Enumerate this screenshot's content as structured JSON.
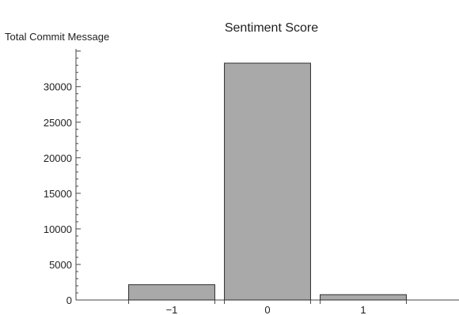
{
  "chart_data": {
    "type": "bar",
    "title": "Sentiment Score",
    "ylabel": "Total Commit Message",
    "xlabel": "",
    "categories": [
      "-1",
      "0",
      "1"
    ],
    "category_labels": [
      "−1",
      "0",
      "1"
    ],
    "values": [
      2150,
      33300,
      750
    ],
    "ylim": [
      0,
      35000
    ],
    "xlim": [
      -2,
      2
    ],
    "yticks": [
      0,
      5000,
      10000,
      15000,
      20000,
      25000,
      30000
    ],
    "ytick_labels": [
      "0",
      "5000",
      "10000",
      "15000",
      "20000",
      "25000",
      "30000"
    ],
    "grid": false,
    "legend": "none",
    "bar_color": "#a9a9a9",
    "bar_edge_color": "#2e2e2e"
  }
}
